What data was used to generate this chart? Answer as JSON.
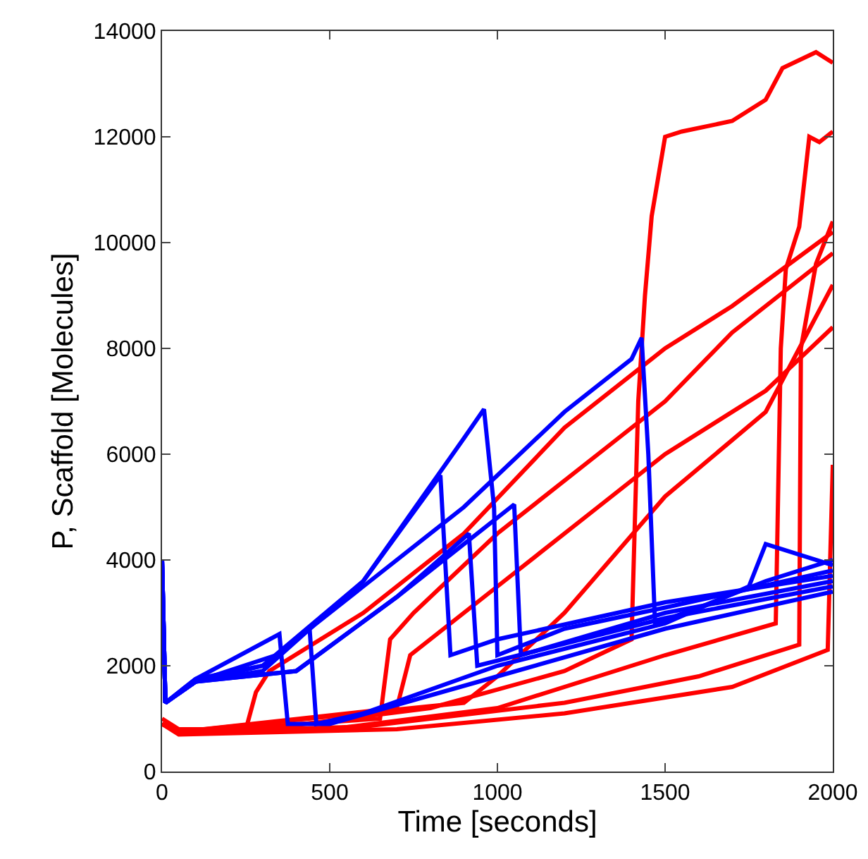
{
  "chart_data": {
    "type": "line",
    "xlabel": "Time [seconds]",
    "ylabel": "P, Scaffold [Molecules]",
    "xlim": [
      0,
      2000
    ],
    "ylim": [
      0,
      14000
    ],
    "xticks": [
      0,
      500,
      1000,
      1500,
      2000
    ],
    "yticks": [
      0,
      2000,
      4000,
      6000,
      8000,
      10000,
      12000,
      14000
    ],
    "grid": false,
    "marker": "none",
    "line_style": "solid",
    "series": [
      {
        "color": "#ff0000",
        "x": [
          0,
          50,
          300,
          800,
          1200,
          1400,
          1420,
          1440,
          1460,
          1500,
          1550,
          1700,
          1800,
          1850,
          1950,
          2000
        ],
        "values": [
          1000,
          800,
          800,
          1200,
          1900,
          2500,
          7000,
          9000,
          10500,
          12000,
          12100,
          12300,
          12700,
          13300,
          13600,
          13400
        ]
      },
      {
        "color": "#ff0000",
        "x": [
          0,
          50,
          500,
          1000,
          1500,
          1830,
          1845,
          1860,
          1900,
          1930,
          1960,
          2000
        ],
        "values": [
          900,
          750,
          800,
          1200,
          2200,
          2800,
          8000,
          9500,
          10300,
          12000,
          11900,
          12100
        ]
      },
      {
        "color": "#ff0000",
        "x": [
          0,
          50,
          600,
          1200,
          1600,
          1900,
          1905,
          1950,
          2000
        ],
        "values": [
          900,
          750,
          850,
          1300,
          1800,
          2400,
          8000,
          9600,
          10400
        ]
      },
      {
        "color": "#ff0000",
        "x": [
          0,
          50,
          700,
          1200,
          1700,
          1985,
          2000
        ],
        "values": [
          900,
          700,
          800,
          1100,
          1600,
          2300,
          5800
        ]
      },
      {
        "color": "#ff0000",
        "x": [
          0,
          50,
          250,
          280,
          320,
          600,
          900,
          1200,
          1500,
          1700,
          2000
        ],
        "values": [
          900,
          750,
          800,
          1500,
          1900,
          3000,
          4500,
          6500,
          8000,
          8800,
          10200
        ]
      },
      {
        "color": "#ff0000",
        "x": [
          0,
          50,
          650,
          680,
          750,
          1000,
          1300,
          1500,
          1700,
          2000
        ],
        "values": [
          900,
          750,
          1000,
          2500,
          3000,
          4500,
          6000,
          7000,
          8300,
          9800
        ]
      },
      {
        "color": "#ff0000",
        "x": [
          0,
          50,
          700,
          740,
          1000,
          1300,
          1500,
          1800,
          2000
        ],
        "values": [
          900,
          750,
          1200,
          2200,
          3500,
          5000,
          6000,
          7200,
          8400
        ]
      },
      {
        "color": "#ff0000",
        "x": [
          0,
          50,
          900,
          1000,
          1200,
          1500,
          1800,
          2000
        ],
        "values": [
          900,
          750,
          1300,
          1800,
          3000,
          5200,
          6800,
          9200
        ]
      },
      {
        "color": "#0000ff",
        "x": [
          0,
          10,
          100,
          300,
          600,
          900,
          1200,
          1400,
          1430,
          1450,
          1470,
          1600,
          1800,
          2000
        ],
        "values": [
          4000,
          1300,
          1700,
          2000,
          3500,
          5000,
          6800,
          7800,
          8200,
          6000,
          2800,
          3100,
          3600,
          4000
        ]
      },
      {
        "color": "#0000ff",
        "x": [
          0,
          10,
          100,
          300,
          600,
          900,
          960,
          990,
          1000,
          1200,
          1500,
          2000
        ],
        "values": [
          4000,
          1300,
          1750,
          2000,
          3600,
          6300,
          6850,
          5000,
          2200,
          2700,
          3100,
          3800
        ]
      },
      {
        "color": "#0000ff",
        "x": [
          0,
          10,
          100,
          300,
          600,
          830,
          860,
          1000,
          1500,
          2000
        ],
        "values": [
          4000,
          1300,
          1700,
          1900,
          3600,
          5600,
          2200,
          2500,
          3200,
          3700
        ]
      },
      {
        "color": "#0000ff",
        "x": [
          0,
          10,
          100,
          400,
          700,
          1050,
          1070,
          1500,
          2000
        ],
        "values": [
          4000,
          1300,
          1700,
          1900,
          3300,
          5050,
          2200,
          3000,
          3600
        ]
      },
      {
        "color": "#0000ff",
        "x": [
          0,
          10,
          100,
          400,
          700,
          915,
          940,
          1500,
          2000
        ],
        "values": [
          4000,
          1300,
          1700,
          1900,
          3300,
          4500,
          2000,
          2900,
          3500
        ]
      },
      {
        "color": "#0000ff",
        "x": [
          0,
          10,
          100,
          350,
          375,
          500,
          1000,
          1500,
          2000
        ],
        "values": [
          4000,
          1300,
          1750,
          2600,
          900,
          900,
          1800,
          2700,
          3400
        ]
      },
      {
        "color": "#0000ff",
        "x": [
          0,
          10,
          100,
          340,
          440,
          460,
          600,
          1000,
          1500,
          1750,
          1800,
          2000
        ],
        "values": [
          4000,
          1300,
          1700,
          2200,
          2700,
          900,
          1100,
          2000,
          2800,
          3500,
          4300,
          3900
        ]
      }
    ]
  }
}
